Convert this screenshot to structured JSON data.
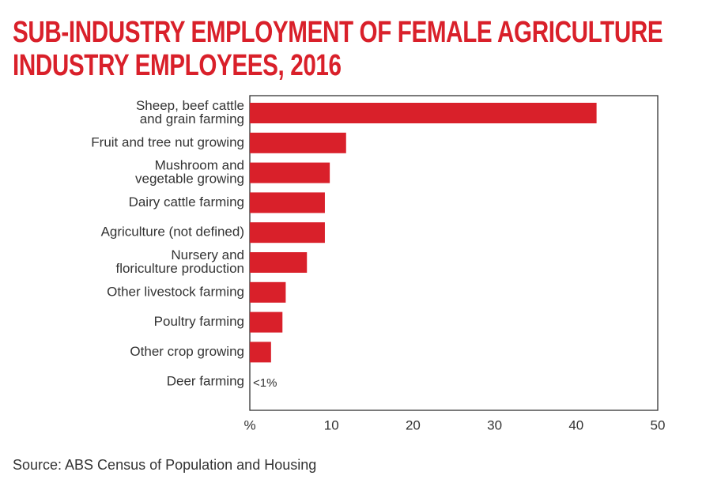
{
  "title_lines": [
    "SUB-INDUSTRY EMPLOYMENT OF FEMALE AGRICULTURE",
    "INDUSTRY EMPLOYEES, 2016"
  ],
  "source": "Source: ABS Census of Population and Housing",
  "colors": {
    "bar": "#d9202a",
    "title": "#d9202a",
    "text": "#333333",
    "axis": "#333333"
  },
  "chart_data": {
    "type": "bar",
    "orientation": "horizontal",
    "title": "SUB-INDUSTRY EMPLOYMENT OF FEMALE AGRICULTURE INDUSTRY EMPLOYEES, 2016",
    "categories": [
      [
        "Sheep, beef cattle",
        "and grain farming"
      ],
      [
        "Fruit and tree nut growing"
      ],
      [
        "Mushroom and",
        "vegetable growing"
      ],
      [
        "Dairy cattle farming"
      ],
      [
        "Agriculture (not defined)"
      ],
      [
        "Nursery and",
        "floriculture production"
      ],
      [
        "Other livestock farming"
      ],
      [
        "Poultry farming"
      ],
      [
        "Other crop growing"
      ],
      [
        "Deer farming"
      ]
    ],
    "values": [
      42.5,
      11.8,
      9.8,
      9.2,
      9.2,
      7.0,
      4.4,
      4.0,
      2.6,
      0.3
    ],
    "value_labels": [
      "",
      "",
      "",
      "",
      "",
      "",
      "",
      "",
      "",
      "<1%"
    ],
    "xlim": [
      0,
      50
    ],
    "x_ticks": [
      "%",
      "10",
      "20",
      "30",
      "40",
      "50"
    ],
    "grid": false
  }
}
